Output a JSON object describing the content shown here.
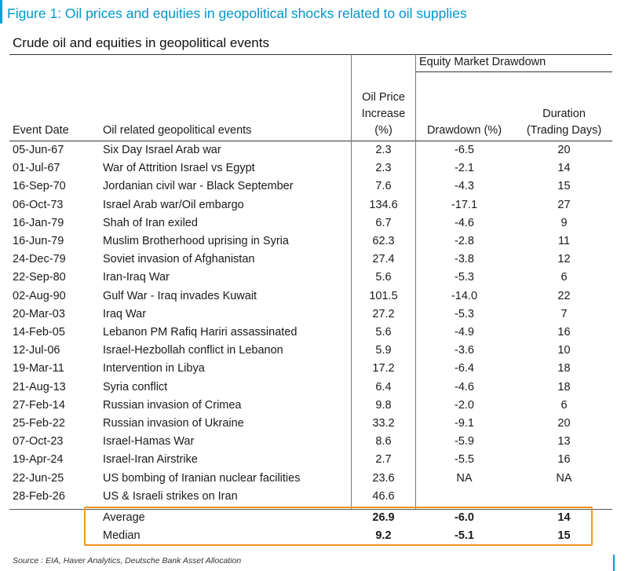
{
  "figure_title": "Figure 1: Oil prices and equities in geopolitical shocks related to oil supplies",
  "table_title": "Crude oil and equities in geopolitical events",
  "group_header": "Equity Market Drawdown",
  "headers": {
    "date": "Event Date",
    "event": "Oil related geopolitical events",
    "oil_line1": "Oil Price",
    "oil_line2": "Increase",
    "oil_line3": "(%)",
    "drawdown": "Drawdown (%)",
    "duration_line1": "Duration",
    "duration_line2": "(Trading Days)"
  },
  "rows": [
    {
      "date": "05-Jun-67",
      "event": "Six Day Israel Arab war",
      "oil": "2.3",
      "drawdown": "-6.5",
      "duration": "20"
    },
    {
      "date": "01-Jul-67",
      "event": "War of Attrition Israel vs Egypt",
      "oil": "2.3",
      "drawdown": "-2.1",
      "duration": "14"
    },
    {
      "date": "16-Sep-70",
      "event": "Jordanian civil war - Black September",
      "oil": "7.6",
      "drawdown": "-4.3",
      "duration": "15"
    },
    {
      "date": "06-Oct-73",
      "event": "Israel Arab war/Oil embargo",
      "oil": "134.6",
      "drawdown": "-17.1",
      "duration": "27"
    },
    {
      "date": "16-Jan-79",
      "event": "Shah of Iran exiled",
      "oil": "6.7",
      "drawdown": "-4.6",
      "duration": "9"
    },
    {
      "date": "16-Jun-79",
      "event": "Muslim Brotherhood uprising in Syria",
      "oil": "62.3",
      "drawdown": "-2.8",
      "duration": "11"
    },
    {
      "date": "24-Dec-79",
      "event": "Soviet invasion of Afghanistan",
      "oil": "27.4",
      "drawdown": "-3.8",
      "duration": "12"
    },
    {
      "date": "22-Sep-80",
      "event": "Iran-Iraq War",
      "oil": "5.6",
      "drawdown": "-5.3",
      "duration": "6"
    },
    {
      "date": "02-Aug-90",
      "event": "Gulf War - Iraq invades Kuwait",
      "oil": "101.5",
      "drawdown": "-14.0",
      "duration": "22"
    },
    {
      "date": "20-Mar-03",
      "event": "Iraq War",
      "oil": "27.2",
      "drawdown": "-5.3",
      "duration": "7"
    },
    {
      "date": "14-Feb-05",
      "event": "Lebanon PM Rafiq Hariri assassinated",
      "oil": "5.6",
      "drawdown": "-4.9",
      "duration": "16"
    },
    {
      "date": "12-Jul-06",
      "event": "Israel-Hezbollah conflict in Lebanon",
      "oil": "5.9",
      "drawdown": "-3.6",
      "duration": "10"
    },
    {
      "date": "19-Mar-11",
      "event": "Intervention in Libya",
      "oil": "17.2",
      "drawdown": "-6.4",
      "duration": "18"
    },
    {
      "date": "21-Aug-13",
      "event": "Syria conflict",
      "oil": "6.4",
      "drawdown": "-4.6",
      "duration": "18"
    },
    {
      "date": "27-Feb-14",
      "event": "Russian invasion of Crimea",
      "oil": "9.8",
      "drawdown": "-2.0",
      "duration": "6"
    },
    {
      "date": "25-Feb-22",
      "event": "Russian invasion of Ukraine",
      "oil": "33.2",
      "drawdown": "-9.1",
      "duration": "20"
    },
    {
      "date": "07-Oct-23",
      "event": "Israel-Hamas War",
      "oil": "8.6",
      "drawdown": "-5.9",
      "duration": "13"
    },
    {
      "date": "19-Apr-24",
      "event": "Israel-Iran Airstrike",
      "oil": "2.7",
      "drawdown": "-5.5",
      "duration": "16"
    },
    {
      "date": "22-Jun-25",
      "event": "US bombing of Iranian nuclear facilities",
      "oil": "23.6",
      "drawdown": "NA",
      "duration": "NA"
    },
    {
      "date": "28-Feb-26",
      "event": "US & Israeli strikes on Iran",
      "oil": "46.6",
      "drawdown": "",
      "duration": ""
    }
  ],
  "summary": [
    {
      "label": "Average",
      "oil": "26.9",
      "drawdown": "-6.0",
      "duration": "14"
    },
    {
      "label": "Median",
      "oil": "9.2",
      "drawdown": "-5.1",
      "duration": "15"
    }
  ],
  "source": "Source : EIA, Haver Analytics, Deutsche Bank Asset Allocation",
  "colors": {
    "title": "#0097cf",
    "highlight": "#f7941d",
    "accent_rule": "#00a0d2"
  }
}
